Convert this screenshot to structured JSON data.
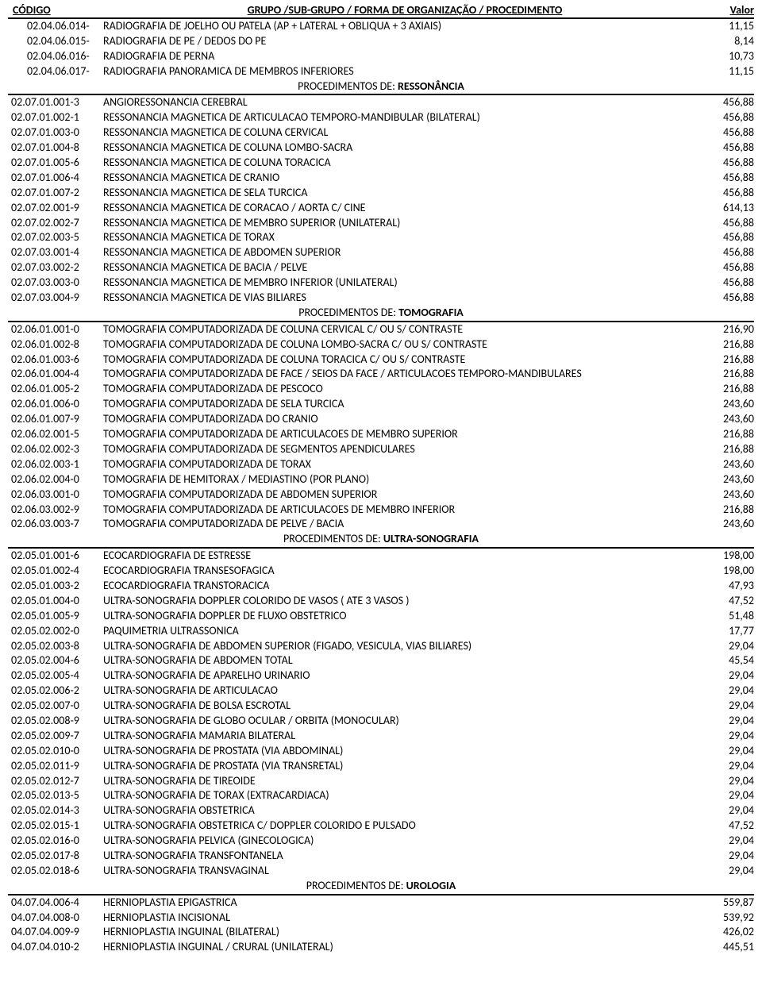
{
  "header": {
    "codigo": "CÓDIGO",
    "desc": "GRUPO /SUB-GRUPO / FORMA DE ORGANIZAÇÃO / PROCEDIMENTO",
    "valor": "Valor"
  },
  "top_rows": [
    {
      "code": "02.04.06.014-",
      "desc": "RADIOGRAFIA DE JOELHO OU PATELA (AP + LATERAL + OBLIQUA + 3 AXIAIS)",
      "val": "11,15"
    },
    {
      "code": "02.04.06.015-",
      "desc": "RADIOGRAFIA DE PE / DEDOS DO PE",
      "val": "8,14"
    },
    {
      "code": "02.04.06.016-",
      "desc": "RADIOGRAFIA DE PERNA",
      "val": "10,73"
    },
    {
      "code": "02.04.06.017-",
      "desc": "RADIOGRAFIA PANORAMICA DE MEMBROS INFERIORES",
      "val": "11,15"
    }
  ],
  "sections": [
    {
      "title_prefix": "PROCEDIMENTOS DE: ",
      "title_bold": "RESSONÂNCIA",
      "rows": [
        {
          "code": "02.07.01.001-3",
          "desc": "ANGIORESSONANCIA CEREBRAL",
          "val": "456,88"
        },
        {
          "code": "02.07.01.002-1",
          "desc": "RESSONANCIA MAGNETICA DE ARTICULACAO TEMPORO-MANDIBULAR (BILATERAL)",
          "val": "456,88"
        },
        {
          "code": "02.07.01.003-0",
          "desc": "RESSONANCIA MAGNETICA DE COLUNA CERVICAL",
          "val": "456,88"
        },
        {
          "code": "02.07.01.004-8",
          "desc": "RESSONANCIA MAGNETICA DE COLUNA LOMBO-SACRA",
          "val": "456,88"
        },
        {
          "code": "02.07.01.005-6",
          "desc": "RESSONANCIA MAGNETICA DE COLUNA TORACICA",
          "val": "456,88"
        },
        {
          "code": "02.07.01.006-4",
          "desc": "RESSONANCIA MAGNETICA DE CRANIO",
          "val": "456,88"
        },
        {
          "code": "02.07.01.007-2",
          "desc": "RESSONANCIA MAGNETICA DE SELA TURCICA",
          "val": "456,88"
        },
        {
          "code": "02.07.02.001-9",
          "desc": "RESSONANCIA MAGNETICA DE CORACAO / AORTA C/ CINE",
          "val": "614,13"
        },
        {
          "code": "02.07.02.002-7",
          "desc": "RESSONANCIA MAGNETICA DE MEMBRO SUPERIOR (UNILATERAL)",
          "val": "456,88"
        },
        {
          "code": "02.07.02.003-5",
          "desc": "RESSONANCIA MAGNETICA DE TORAX",
          "val": "456,88"
        },
        {
          "code": "02.07.03.001-4",
          "desc": "RESSONANCIA MAGNETICA DE ABDOMEN SUPERIOR",
          "val": "456,88"
        },
        {
          "code": "02.07.03.002-2",
          "desc": "RESSONANCIA MAGNETICA DE BACIA / PELVE",
          "val": "456,88"
        },
        {
          "code": "02.07.03.003-0",
          "desc": "RESSONANCIA MAGNETICA DE MEMBRO INFERIOR (UNILATERAL)",
          "val": "456,88"
        },
        {
          "code": "02.07.03.004-9",
          "desc": "RESSONANCIA MAGNETICA DE VIAS BILIARES",
          "val": "456,88"
        }
      ]
    },
    {
      "title_prefix": "PROCEDIMENTOS DE: ",
      "title_bold": "TOMOGRAFIA",
      "rows": [
        {
          "code": "02.06.01.001-0",
          "desc": "TOMOGRAFIA COMPUTADORIZADA DE COLUNA CERVICAL C/ OU S/ CONTRASTE",
          "val": "216,90"
        },
        {
          "code": "02.06.01.002-8",
          "desc": "TOMOGRAFIA COMPUTADORIZADA DE COLUNA LOMBO-SACRA C/ OU S/ CONTRASTE",
          "val": "216,88"
        },
        {
          "code": "02.06.01.003-6",
          "desc": "TOMOGRAFIA COMPUTADORIZADA DE COLUNA TORACICA C/ OU S/ CONTRASTE",
          "val": "216,88"
        },
        {
          "code": "02.06.01.004-4",
          "desc": "TOMOGRAFIA COMPUTADORIZADA DE FACE / SEIOS DA FACE / ARTICULACOES TEMPORO-MANDIBULARES",
          "val": "216,88"
        },
        {
          "code": "02.06.01.005-2",
          "desc": "TOMOGRAFIA COMPUTADORIZADA DE PESCOCO",
          "val": "216,88"
        },
        {
          "code": "02.06.01.006-0",
          "desc": "TOMOGRAFIA COMPUTADORIZADA DE SELA TURCICA",
          "val": "243,60"
        },
        {
          "code": "02.06.01.007-9",
          "desc": "TOMOGRAFIA COMPUTADORIZADA DO CRANIO",
          "val": "243,60"
        },
        {
          "code": "02.06.02.001-5",
          "desc": "TOMOGRAFIA COMPUTADORIZADA DE ARTICULACOES DE MEMBRO SUPERIOR",
          "val": "216,88"
        },
        {
          "code": "02.06.02.002-3",
          "desc": "TOMOGRAFIA COMPUTADORIZADA DE SEGMENTOS APENDICULARES",
          "val": "216,88"
        },
        {
          "code": "02.06.02.003-1",
          "desc": "TOMOGRAFIA COMPUTADORIZADA DE TORAX",
          "val": "243,60"
        },
        {
          "code": "02.06.02.004-0",
          "desc": "TOMOGRAFIA DE HEMITORAX / MEDIASTINO (POR PLANO)",
          "val": "243,60"
        },
        {
          "code": "02.06.03.001-0",
          "desc": "TOMOGRAFIA COMPUTADORIZADA DE ABDOMEN SUPERIOR",
          "val": "243,60"
        },
        {
          "code": "02.06.03.002-9",
          "desc": "TOMOGRAFIA COMPUTADORIZADA DE ARTICULACOES DE MEMBRO INFERIOR",
          "val": "216,88"
        },
        {
          "code": "02.06.03.003-7",
          "desc": "TOMOGRAFIA COMPUTADORIZADA DE PELVE / BACIA",
          "val": "243,60"
        }
      ]
    },
    {
      "title_prefix": "PROCEDIMENTOS DE: ",
      "title_bold": "ULTRA-SONOGRAFIA",
      "rows": [
        {
          "code": "02.05.01.001-6",
          "desc": "ECOCARDIOGRAFIA DE ESTRESSE",
          "val": "198,00"
        },
        {
          "code": "02.05.01.002-4",
          "desc": "ECOCARDIOGRAFIA TRANSESOFAGICA",
          "val": "198,00"
        },
        {
          "code": "02.05.01.003-2",
          "desc": "ECOCARDIOGRAFIA TRANSTORACICA",
          "val": "47,93"
        },
        {
          "code": "02.05.01.004-0",
          "desc": "ULTRA-SONOGRAFIA DOPPLER COLORIDO DE VASOS ( ATE 3 VASOS )",
          "val": "47,52"
        },
        {
          "code": "02.05.01.005-9",
          "desc": "ULTRA-SONOGRAFIA DOPPLER DE FLUXO OBSTETRICO",
          "val": "51,48"
        },
        {
          "code": "02.05.02.002-0",
          "desc": "PAQUIMETRIA ULTRASSONICA",
          "val": "17,77"
        },
        {
          "code": "02.05.02.003-8",
          "desc": "ULTRA-SONOGRAFIA DE ABDOMEN SUPERIOR (FIGADO, VESICULA, VIAS BILIARES)",
          "val": "29,04"
        },
        {
          "code": "02.05.02.004-6",
          "desc": "ULTRA-SONOGRAFIA DE ABDOMEN TOTAL",
          "val": "45,54"
        },
        {
          "code": "02.05.02.005-4",
          "desc": "ULTRA-SONOGRAFIA DE APARELHO URINARIO",
          "val": "29,04"
        },
        {
          "code": "02.05.02.006-2",
          "desc": "ULTRA-SONOGRAFIA DE ARTICULACAO",
          "val": "29,04"
        },
        {
          "code": "02.05.02.007-0",
          "desc": "ULTRA-SONOGRAFIA DE BOLSA ESCROTAL",
          "val": "29,04"
        },
        {
          "code": "02.05.02.008-9",
          "desc": "ULTRA-SONOGRAFIA DE GLOBO OCULAR / ORBITA (MONOCULAR)",
          "val": "29,04"
        },
        {
          "code": "02.05.02.009-7",
          "desc": "ULTRA-SONOGRAFIA MAMARIA BILATERAL",
          "val": "29,04"
        },
        {
          "code": "02.05.02.010-0",
          "desc": "ULTRA-SONOGRAFIA DE PROSTATA (VIA ABDOMINAL)",
          "val": "29,04"
        },
        {
          "code": "02.05.02.011-9",
          "desc": "ULTRA-SONOGRAFIA DE PROSTATA (VIA TRANSRETAL)",
          "val": "29,04"
        },
        {
          "code": "02.05.02.012-7",
          "desc": "ULTRA-SONOGRAFIA DE TIREOIDE",
          "val": "29,04"
        },
        {
          "code": "02.05.02.013-5",
          "desc": "ULTRA-SONOGRAFIA DE TORAX (EXTRACARDIACA)",
          "val": "29,04"
        },
        {
          "code": "02.05.02.014-3",
          "desc": "ULTRA-SONOGRAFIA OBSTETRICA",
          "val": "29,04"
        },
        {
          "code": "02.05.02.015-1",
          "desc": "ULTRA-SONOGRAFIA OBSTETRICA C/ DOPPLER COLORIDO E PULSADO",
          "val": "47,52"
        },
        {
          "code": "02.05.02.016-0",
          "desc": "ULTRA-SONOGRAFIA PELVICA (GINECOLOGICA)",
          "val": "29,04"
        },
        {
          "code": "02.05.02.017-8",
          "desc": "ULTRA-SONOGRAFIA TRANSFONTANELA",
          "val": "29,04"
        },
        {
          "code": "02.05.02.018-6",
          "desc": "ULTRA-SONOGRAFIA TRANSVAGINAL",
          "val": "29,04"
        }
      ]
    },
    {
      "title_prefix": "PROCEDIMENTOS DE: ",
      "title_bold": "UROLOGIA",
      "rows": [
        {
          "code": "04.07.04.006-4",
          "desc": "HERNIOPLASTIA EPIGASTRICA",
          "val": "559,87"
        },
        {
          "code": "04.07.04.008-0",
          "desc": "HERNIOPLASTIA INCISIONAL",
          "val": "539,92"
        },
        {
          "code": "04.07.04.009-9",
          "desc": "HERNIOPLASTIA INGUINAL (BILATERAL)",
          "val": "426,02"
        },
        {
          "code": "04.07.04.010-2",
          "desc": "HERNIOPLASTIA INGUINAL / CRURAL (UNILATERAL)",
          "val": "445,51"
        }
      ]
    }
  ]
}
